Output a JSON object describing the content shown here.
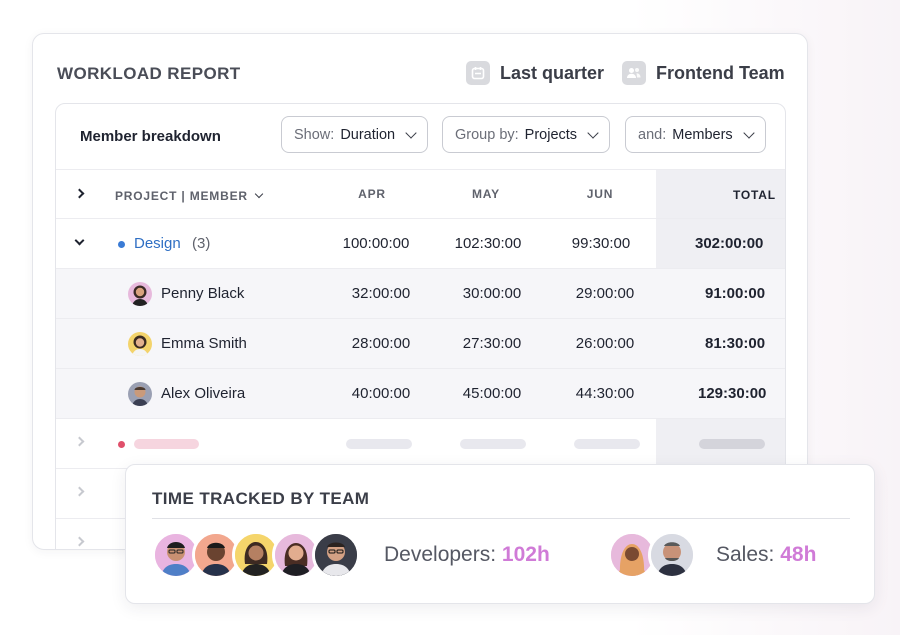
{
  "report": {
    "title": "WORKLOAD REPORT",
    "period_filter": {
      "label": "Last quarter",
      "icon": "calendar-icon"
    },
    "team_filter": {
      "label": "Frontend Team",
      "icon": "team-icon"
    }
  },
  "toolbar": {
    "label": "Member breakdown",
    "show": {
      "key": "Show:",
      "value": "Duration"
    },
    "group": {
      "key": "Group by:",
      "value": "Projects"
    },
    "and": {
      "key": "and:",
      "value": "Members"
    }
  },
  "table": {
    "headers": {
      "project_member": "PROJECT | MEMBER",
      "apr": "APR",
      "may": "MAY",
      "jun": "JUN",
      "total": "TOTAL"
    },
    "group": {
      "name": "Design",
      "count": "(3)",
      "apr": "100:00:00",
      "may": "102:30:00",
      "jun": "99:30:00",
      "total": "302:00:00",
      "dot_color": "#3a7bd5"
    },
    "members": [
      {
        "name": "Penny Black",
        "apr": "32:00:00",
        "may": "30:00:00",
        "jun": "29:00:00",
        "total": "91:00:00"
      },
      {
        "name": "Emma Smith",
        "apr": "28:00:00",
        "may": "27:30:00",
        "jun": "26:00:00",
        "total": "81:30:00"
      },
      {
        "name": "Alex Oliveira",
        "apr": "40:00:00",
        "may": "45:00:00",
        "jun": "44:30:00",
        "total": "129:30:00"
      }
    ],
    "placeholder_dot_color": "#e0506b"
  },
  "tracked": {
    "title": "TIME TRACKED BY TEAM",
    "developers": {
      "label": "Developers:",
      "hours": "102h"
    },
    "sales": {
      "label": "Sales:",
      "hours": "48h"
    },
    "accent": "#d07bd7"
  }
}
